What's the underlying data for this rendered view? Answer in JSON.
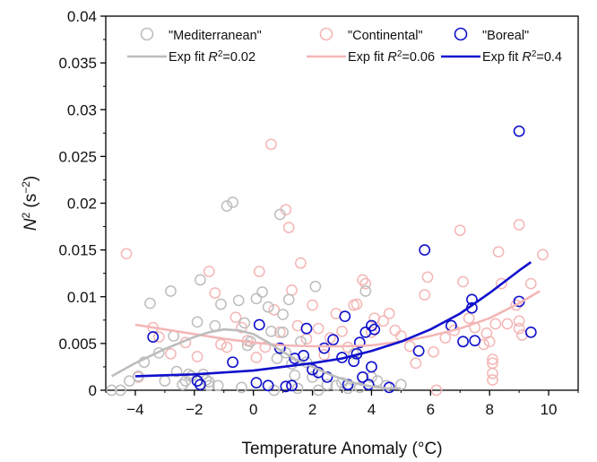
{
  "chart_data": {
    "type": "scatter",
    "xlabel": "Temperature Anomaly (°C)",
    "ylabel_main": "N",
    "ylabel_sup": "2",
    "ylabel_rest": " (s",
    "ylabel_unit_sup": "−2",
    "ylabel_close": ")",
    "xlim": [
      -5,
      11
    ],
    "ylim": [
      0,
      0.04
    ],
    "xticks": [
      -4,
      -2,
      0,
      2,
      4,
      6,
      8,
      10
    ],
    "yticks": [
      0,
      0.005,
      0.01,
      0.015,
      0.02,
      0.025,
      0.03,
      0.035,
      0.04
    ],
    "xtick_labels": [
      "−4",
      "−2",
      "0",
      "2",
      "4",
      "6",
      "8",
      "10"
    ],
    "ytick_labels": [
      "0",
      "0.005",
      "0.01",
      "0.015",
      "0.02",
      "0.025",
      "0.03",
      "0.035",
      "0.04"
    ],
    "grid": false,
    "legend_placement": "top",
    "series": [
      {
        "name": "\"Mediterranean\"",
        "color": "#bdbdbd",
        "fit_label_prefix": "Exp fit  ",
        "fit_r2": "=0.02",
        "points": [
          [
            -4.8,
            0.0
          ],
          [
            -4.5,
            0.0
          ],
          [
            -4.2,
            0.001
          ],
          [
            -3.9,
            0.0015
          ],
          [
            -3.7,
            0.003
          ],
          [
            -3.5,
            0.0093
          ],
          [
            -3.2,
            0.004
          ],
          [
            -3.0,
            0.001
          ],
          [
            -2.8,
            0.0106
          ],
          [
            -2.7,
            0.0058
          ],
          [
            -2.6,
            0.002
          ],
          [
            -2.4,
            0.0006
          ],
          [
            -2.3,
            0.001
          ],
          [
            -2.2,
            0.0017
          ],
          [
            -2.1,
            0.0015
          ],
          [
            -1.9,
            0.0073
          ],
          [
            -1.8,
            0.0118
          ],
          [
            -1.7,
            0.0017
          ],
          [
            -1.6,
            0.0011
          ],
          [
            -1.5,
            0.0005
          ],
          [
            -1.5,
            0.0009
          ],
          [
            -1.3,
            0.0069
          ],
          [
            -1.2,
            0.0005
          ],
          [
            -1.1,
            0.0092
          ],
          [
            -0.9,
            0.0197
          ],
          [
            -0.7,
            0.0201
          ],
          [
            -0.5,
            0.0096
          ],
          [
            -0.4,
            0.0003
          ],
          [
            -0.3,
            0.0072
          ],
          [
            -0.2,
            0.0048
          ],
          [
            -0.1,
            0.0052
          ],
          [
            0.1,
            0.0098
          ],
          [
            0.3,
            0.0105
          ],
          [
            0.5,
            0.0089
          ],
          [
            0.6,
            0.0063
          ],
          [
            0.7,
            0.0
          ],
          [
            0.8,
            0.0034
          ],
          [
            0.9,
            0.0188
          ],
          [
            1.0,
            0.0081
          ],
          [
            1.0,
            0.0062
          ],
          [
            1.1,
            0.004
          ],
          [
            1.2,
            0.0097
          ],
          [
            1.3,
            0.0028
          ],
          [
            1.4,
            0.0016
          ],
          [
            1.5,
            0.0002
          ],
          [
            1.6,
            0.0052
          ],
          [
            1.8,
            0.003
          ],
          [
            2.0,
            0.0014
          ],
          [
            2.1,
            0.0111
          ],
          [
            2.2,
            0.0
          ],
          [
            2.5,
            0.0006
          ],
          [
            2.8,
            0.0005
          ],
          [
            3.0,
            0.0008
          ],
          [
            3.2,
            0.0002
          ],
          [
            3.4,
            0.0039
          ],
          [
            3.6,
            0.0003
          ],
          [
            3.8,
            0.0106
          ],
          [
            4.0,
            0.0014
          ],
          [
            4.2,
            0.001
          ],
          [
            4.5,
            0.0005
          ],
          [
            5.0,
            0.0006
          ]
        ],
        "fit": [
          [
            -4.8,
            0.0015
          ],
          [
            -4.0,
            0.0029
          ],
          [
            -3.0,
            0.0044
          ],
          [
            -2.0,
            0.0057
          ],
          [
            -1.5,
            0.0062
          ],
          [
            -1.0,
            0.0065
          ],
          [
            -0.5,
            0.0064
          ],
          [
            0.0,
            0.006
          ],
          [
            0.5,
            0.0051
          ],
          [
            1.0,
            0.0041
          ],
          [
            1.5,
            0.0032
          ],
          [
            2.0,
            0.0025
          ],
          [
            2.5,
            0.0018
          ],
          [
            3.0,
            0.0012
          ],
          [
            3.5,
            0.0007
          ],
          [
            4.0,
            0.0004
          ],
          [
            4.5,
            0.0002
          ],
          [
            5.0,
            0.0002
          ]
        ]
      },
      {
        "name": "\"Continental\"",
        "color": "#f4b6b6",
        "fit_label_prefix": "Exp fit  ",
        "fit_r2": "=0.06",
        "points": [
          [
            -4.3,
            0.0146
          ],
          [
            -3.9,
            0.0014
          ],
          [
            -3.4,
            0.0067
          ],
          [
            -3.2,
            0.0057
          ],
          [
            -2.8,
            0.0039
          ],
          [
            -2.3,
            0.0051
          ],
          [
            -1.9,
            0.0036
          ],
          [
            -1.5,
            0.0127
          ],
          [
            -1.3,
            0.0104
          ],
          [
            -1.1,
            0.0049
          ],
          [
            -0.9,
            0.0046
          ],
          [
            -0.6,
            0.0078
          ],
          [
            -0.4,
            0.0067
          ],
          [
            -0.2,
            0.0053
          ],
          [
            0.1,
            0.0035
          ],
          [
            0.2,
            0.0127
          ],
          [
            0.4,
            0.0046
          ],
          [
            0.6,
            0.0263
          ],
          [
            0.7,
            0.0086
          ],
          [
            0.9,
            0.0062
          ],
          [
            1.1,
            0.0193
          ],
          [
            1.2,
            0.0174
          ],
          [
            1.3,
            0.0107
          ],
          [
            1.5,
            0.0069
          ],
          [
            1.6,
            0.0136
          ],
          [
            1.8,
            0.0055
          ],
          [
            2.0,
            0.0091
          ],
          [
            2.2,
            0.0066
          ],
          [
            2.4,
            0.0038
          ],
          [
            2.6,
            0.0056
          ],
          [
            2.8,
            0.0082
          ],
          [
            3.0,
            0.0063
          ],
          [
            3.2,
            0.0046
          ],
          [
            3.4,
            0.0091
          ],
          [
            3.5,
            0.0092
          ],
          [
            3.7,
            0.0118
          ],
          [
            3.8,
            0.0114
          ],
          [
            4.0,
            0.0062
          ],
          [
            4.1,
            0.0077
          ],
          [
            4.4,
            0.0074
          ],
          [
            4.6,
            0.0082
          ],
          [
            4.8,
            0.0064
          ],
          [
            5.0,
            0.0058
          ],
          [
            5.3,
            0.0047
          ],
          [
            5.5,
            0.0029
          ],
          [
            5.8,
            0.0102
          ],
          [
            5.9,
            0.0121
          ],
          [
            6.1,
            0.0041
          ],
          [
            6.2,
            0.0
          ],
          [
            6.5,
            0.0056
          ],
          [
            6.8,
            0.0064
          ],
          [
            7.0,
            0.0171
          ],
          [
            7.1,
            0.0116
          ],
          [
            7.3,
            0.0077
          ],
          [
            7.5,
            0.0067
          ],
          [
            7.8,
            0.0049
          ],
          [
            7.9,
            0.0061
          ],
          [
            8.0,
            0.0052
          ],
          [
            8.1,
            0.0033
          ],
          [
            8.1,
            0.0029
          ],
          [
            8.1,
            0.0018
          ],
          [
            8.1,
            0.0011
          ],
          [
            8.2,
            0.0071
          ],
          [
            8.3,
            0.0148
          ],
          [
            8.4,
            0.0114
          ],
          [
            8.6,
            0.0071
          ],
          [
            8.9,
            0.0091
          ],
          [
            9.0,
            0.0177
          ],
          [
            9.0,
            0.0074
          ],
          [
            9.0,
            0.0066
          ],
          [
            9.1,
            0.0059
          ],
          [
            9.4,
            0.0114
          ],
          [
            9.8,
            0.0145
          ]
        ],
        "fit": [
          [
            -4.0,
            0.007
          ],
          [
            -3.0,
            0.0065
          ],
          [
            -2.0,
            0.006
          ],
          [
            -1.0,
            0.0055
          ],
          [
            0.0,
            0.0051
          ],
          [
            1.0,
            0.0048
          ],
          [
            2.0,
            0.0047
          ],
          [
            3.0,
            0.0047
          ],
          [
            4.0,
            0.0048
          ],
          [
            5.0,
            0.0052
          ],
          [
            6.0,
            0.0058
          ],
          [
            7.0,
            0.0066
          ],
          [
            8.0,
            0.0077
          ],
          [
            9.0,
            0.0093
          ],
          [
            9.7,
            0.0106
          ]
        ]
      },
      {
        "name": "\"Boreal\"",
        "color": "#1010cc",
        "fit_label_prefix": "Exp fit  ",
        "fit_r2": "=0.4",
        "points": [
          [
            -3.4,
            0.0057
          ],
          [
            -1.9,
            0.001
          ],
          [
            -1.8,
            0.0006
          ],
          [
            -0.7,
            0.003
          ],
          [
            0.1,
            0.0008
          ],
          [
            0.2,
            0.007
          ],
          [
            0.5,
            0.0005
          ],
          [
            0.9,
            0.0045
          ],
          [
            1.1,
            0.0004
          ],
          [
            1.3,
            0.0005
          ],
          [
            1.4,
            0.0034
          ],
          [
            1.7,
            0.0037
          ],
          [
            1.8,
            0.0066
          ],
          [
            2.0,
            0.0022
          ],
          [
            2.2,
            0.0019
          ],
          [
            2.4,
            0.0045
          ],
          [
            2.5,
            0.0014
          ],
          [
            2.7,
            0.0054
          ],
          [
            3.0,
            0.0035
          ],
          [
            3.1,
            0.0079
          ],
          [
            3.2,
            0.0006
          ],
          [
            3.4,
            0.0031
          ],
          [
            3.5,
            0.0039
          ],
          [
            3.6,
            0.0051
          ],
          [
            3.7,
            0.0014
          ],
          [
            3.8,
            0.0062
          ],
          [
            3.9,
            0.0006
          ],
          [
            4.0,
            0.0025
          ],
          [
            4.0,
            0.0069
          ],
          [
            4.1,
            0.0065
          ],
          [
            4.6,
            0.0003
          ],
          [
            5.6,
            0.0042
          ],
          [
            5.8,
            0.015
          ],
          [
            6.7,
            0.0069
          ],
          [
            7.1,
            0.0052
          ],
          [
            7.4,
            0.0097
          ],
          [
            7.4,
            0.0088
          ],
          [
            7.5,
            0.0053
          ],
          [
            9.0,
            0.0277
          ],
          [
            9.0,
            0.0095
          ],
          [
            9.4,
            0.0062
          ]
        ],
        "fit": [
          [
            -4.0,
            0.0015
          ],
          [
            -3.0,
            0.0016
          ],
          [
            -2.0,
            0.0017
          ],
          [
            -1.0,
            0.0019
          ],
          [
            0.0,
            0.0021
          ],
          [
            1.0,
            0.0025
          ],
          [
            2.0,
            0.0029
          ],
          [
            3.0,
            0.0034
          ],
          [
            4.0,
            0.0042
          ],
          [
            5.0,
            0.0052
          ],
          [
            6.0,
            0.0065
          ],
          [
            7.0,
            0.0082
          ],
          [
            8.0,
            0.0104
          ],
          [
            9.0,
            0.0128
          ],
          [
            9.4,
            0.0137
          ]
        ]
      }
    ]
  }
}
